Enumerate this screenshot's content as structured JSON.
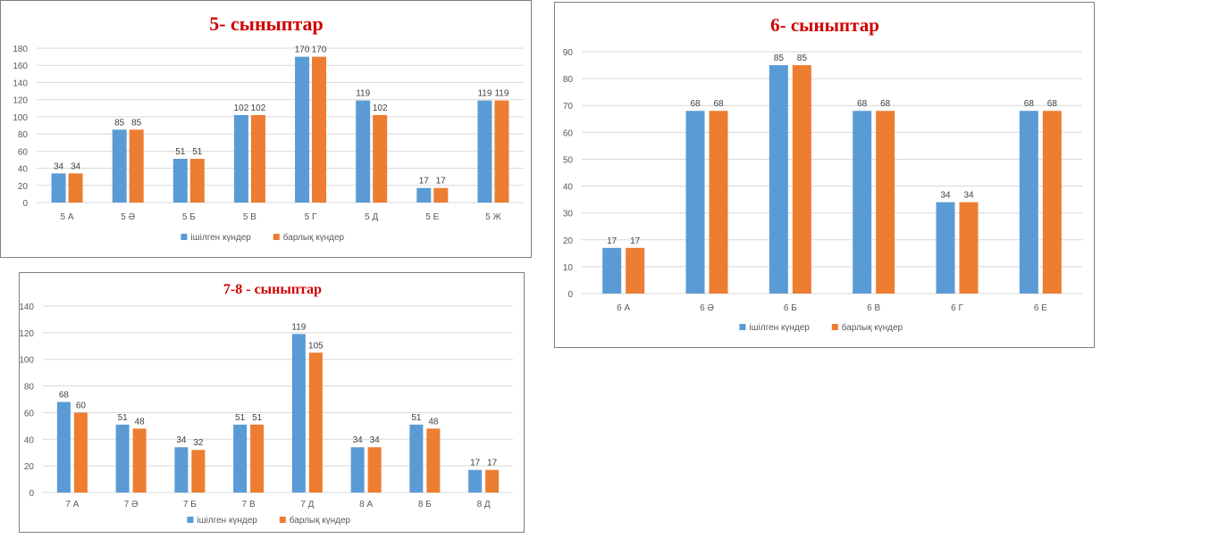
{
  "colors": {
    "series1": "#5b9bd5",
    "series2": "#ed7d31",
    "grid": "#d9d9d9",
    "title": "#d00000"
  },
  "legend": {
    "series1": "ішілген күндер",
    "series2": "барлық күндер",
    "placement": "bottom"
  },
  "chart_data": [
    {
      "type": "bar",
      "title": "5- сыныптар",
      "categories": [
        "5 А",
        "5 Ә",
        "5 Б",
        "5 В",
        "5 Г",
        "5 Д",
        "5 Е",
        "5 Ж"
      ],
      "series": [
        {
          "name": "ішілген күндер",
          "values": [
            34,
            85,
            51,
            102,
            170,
            119,
            17,
            119
          ]
        },
        {
          "name": "барлық күндер",
          "values": [
            34,
            85,
            51,
            102,
            170,
            102,
            17,
            119
          ]
        }
      ],
      "ylim": [
        0,
        180
      ],
      "yticks": [
        "0",
        "20",
        "40",
        "60",
        "80",
        "100",
        "120",
        "140",
        "160",
        "180"
      ],
      "grid": true
    },
    {
      "type": "bar",
      "title": "6- сыныптар",
      "categories": [
        "6 А",
        "6 Ә",
        "6 Б",
        "6 В",
        "6 Г",
        "6 Е"
      ],
      "series": [
        {
          "name": "ішілген күндер",
          "values": [
            17,
            68,
            85,
            68,
            34,
            68
          ]
        },
        {
          "name": "барлық күндер",
          "values": [
            17,
            68,
            85,
            68,
            34,
            68
          ]
        }
      ],
      "ylim": [
        0,
        90
      ],
      "yticks": [
        "0",
        "10",
        "20",
        "30",
        "40",
        "50",
        "60",
        "70",
        "80",
        "90"
      ],
      "grid": true
    },
    {
      "type": "bar",
      "title": "7-8 - сыныптар",
      "categories": [
        "7 А",
        "7 Ә",
        "7 Б",
        "7 В",
        "7 Д",
        "8 А",
        "8 Б",
        "8 Д"
      ],
      "series": [
        {
          "name": "ішілген күндер",
          "values": [
            68,
            51,
            34,
            51,
            119,
            34,
            51,
            17
          ]
        },
        {
          "name": "барлық күндер",
          "values": [
            60,
            48,
            32,
            51,
            105,
            34,
            48,
            17
          ]
        }
      ],
      "data_labels": [
        [
          "68",
          "51",
          "34",
          "51",
          "119",
          "34",
          "51",
          "17"
        ],
        [
          "60",
          "48",
          "32",
          "51",
          "105",
          "34",
          "48",
          "17"
        ]
      ],
      "ylim": [
        0,
        140
      ],
      "yticks": [
        "0",
        "20",
        "40",
        "60",
        "80",
        "100",
        "120",
        "140"
      ],
      "grid": true
    }
  ]
}
